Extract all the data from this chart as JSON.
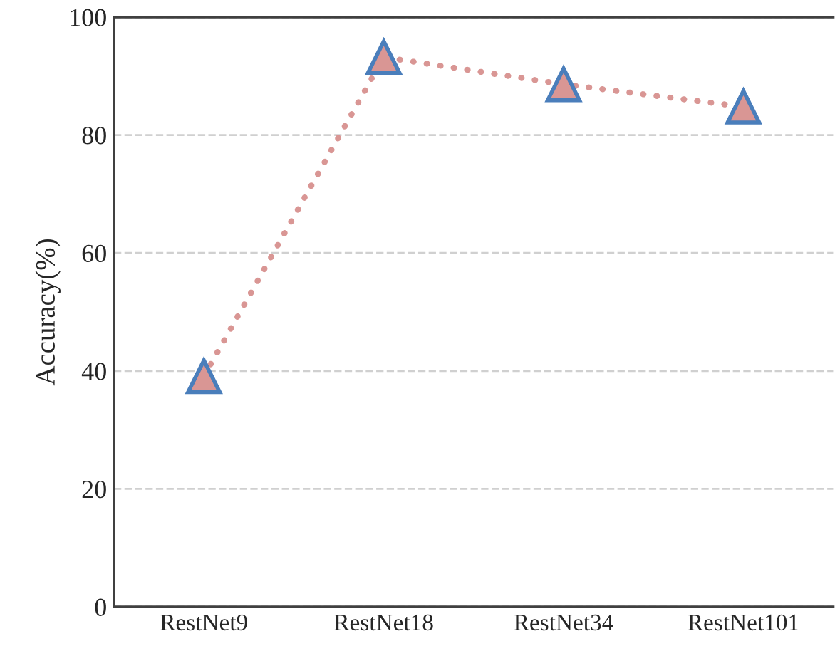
{
  "chart_data": {
    "type": "line",
    "ylabel": "Accuracy(%)",
    "categories": [
      "RestNet9",
      "RestNet18",
      "RestNet34",
      "RestNet101"
    ],
    "series": [
      {
        "color": "#d99694",
        "values": [
          39.1,
          93.2,
          88.6,
          84.8
        ]
      }
    ],
    "ylim": [
      0,
      100
    ],
    "yticks": [
      0,
      20,
      40,
      60,
      80,
      100
    ],
    "grid": "y",
    "marker": "triangle",
    "line_style": "dotted",
    "legend": false
  }
}
